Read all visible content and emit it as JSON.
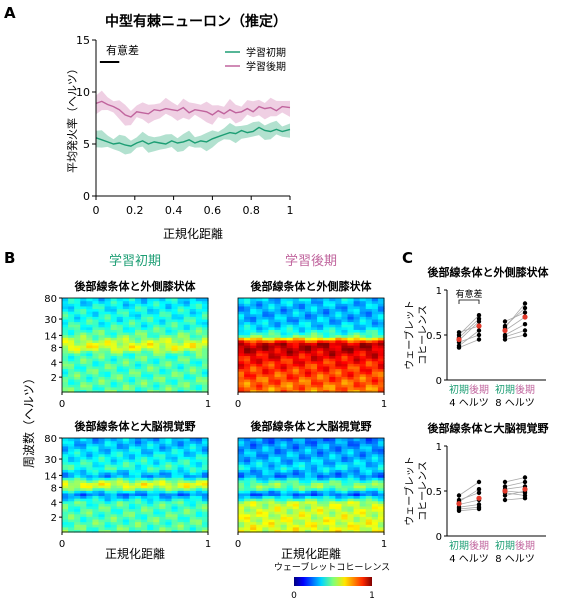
{
  "panels": {
    "a": "A",
    "b": "B",
    "c": "C"
  },
  "colors": {
    "early": "#1d9e74",
    "late": "#c0649d",
    "early_band": "#9fd9c3",
    "late_band": "#ebc3dc",
    "red_dot": "#e23a2b"
  },
  "chart_data": [
    {
      "id": "A",
      "type": "line",
      "title": "中型有棘ニューロン（推定）",
      "xlabel": "正規化距離",
      "ylabel": "平均発火率（ヘルツ）",
      "xlim": [
        0,
        1
      ],
      "ylim": [
        0,
        15
      ],
      "xticks": [
        "0",
        "0.2",
        "0.4",
        "0.6",
        "0.8",
        "1"
      ],
      "yticks": [
        "0",
        "5",
        "10",
        "15"
      ],
      "annotation": "有意差",
      "significance_bar": [
        0.02,
        0.12
      ],
      "legend_position": "top-right",
      "x": [
        0,
        0.03,
        0.06,
        0.09,
        0.12,
        0.15,
        0.18,
        0.21,
        0.24,
        0.27,
        0.3,
        0.33,
        0.36,
        0.39,
        0.42,
        0.45,
        0.48,
        0.51,
        0.54,
        0.57,
        0.6,
        0.63,
        0.66,
        0.69,
        0.72,
        0.75,
        0.78,
        0.81,
        0.84,
        0.87,
        0.9,
        0.93,
        0.96,
        1.0
      ],
      "series": [
        {
          "name": "学習初期",
          "values": [
            5.6,
            5.4,
            5.2,
            5.0,
            5.1,
            4.9,
            4.8,
            5.1,
            5.3,
            5.0,
            5.2,
            5.1,
            5.0,
            5.3,
            5.1,
            5.2,
            5.4,
            5.1,
            5.3,
            5.2,
            5.5,
            5.7,
            5.9,
            6.1,
            6.0,
            6.3,
            6.1,
            6.2,
            6.6,
            6.3,
            6.2,
            6.4,
            6.2,
            6.4
          ],
          "error": 0.8
        },
        {
          "name": "学習後期",
          "values": [
            8.9,
            9.1,
            8.8,
            8.6,
            8.3,
            7.8,
            7.6,
            8.1,
            8.0,
            7.9,
            8.3,
            8.2,
            8.4,
            8.3,
            8.2,
            8.5,
            8.0,
            8.3,
            8.2,
            8.1,
            7.8,
            8.2,
            7.9,
            8.3,
            8.0,
            8.1,
            8.4,
            8.1,
            8.6,
            8.4,
            8.5,
            8.2,
            8.6,
            8.5
          ],
          "error": 0.9
        }
      ]
    },
    {
      "id": "B",
      "type": "heatmap",
      "column_titles": [
        "学習初期",
        "学習後期"
      ],
      "row_titles": [
        "後部線条体と外側膝状体",
        "後部線条体と大脳視覚野"
      ],
      "xlabel": "正規化距離",
      "ylabel": "周波数（ヘルツ）",
      "xlim": [
        0,
        1
      ],
      "xticks": [
        "0",
        "1"
      ],
      "yticks": [
        "2",
        "4",
        "8",
        "14",
        "30",
        "80"
      ],
      "colorbar_label": "ウェーブレットコヒーレンス",
      "colorbar_range": [
        0,
        1
      ],
      "colorbar_ticks": [
        "0",
        "1"
      ],
      "colormap": "jet",
      "bands": [
        "1",
        "2",
        "4",
        "6",
        "8",
        "10",
        "14",
        "20",
        "30",
        "50",
        "80"
      ],
      "maps": [
        {
          "name": "学習初期 後部線条体と外側膝状体",
          "values": [
            0.46,
            0.45,
            0.44,
            0.45,
            0.6,
            0.58,
            0.47,
            0.42,
            0.4,
            0.38,
            0.35
          ]
        },
        {
          "name": "学習後期 後部線条体と外側膝状体",
          "values": [
            0.75,
            0.8,
            0.85,
            0.9,
            0.95,
            0.92,
            0.45,
            0.35,
            0.3,
            0.3,
            0.33
          ]
        },
        {
          "name": "学習初期 後部線条体と大脳視覚野",
          "values": [
            0.46,
            0.45,
            0.44,
            0.25,
            0.56,
            0.6,
            0.28,
            0.42,
            0.38,
            0.33,
            0.3
          ]
        },
        {
          "name": "学習後期 後部線条体と大脳視覚野",
          "values": [
            0.6,
            0.58,
            0.56,
            0.22,
            0.5,
            0.48,
            0.25,
            0.35,
            0.3,
            0.28,
            0.25
          ]
        }
      ]
    },
    {
      "id": "C",
      "type": "scatter",
      "ylabel": "ウェーブレット\nコヒーレンス",
      "group_labels": [
        "初期",
        "後期",
        "初期",
        "後期"
      ],
      "frequency_labels": [
        "4 ヘルツ",
        "8 ヘルツ"
      ],
      "ylim": [
        0,
        1
      ],
      "yticks": [
        "0",
        "0.5",
        "1"
      ],
      "plots": [
        {
          "title": "後部線条体と外側膝状体",
          "annotation": "有意差",
          "groups": [
            {
              "name": "4 ヘルツ",
              "early": [
                0.38,
                0.44,
                0.5,
                0.42,
                0.53,
                0.36,
                0.47
              ],
              "late": [
                0.55,
                0.65,
                0.72,
                0.5,
                0.6,
                0.45,
                0.68
              ],
              "early_mean": 0.45,
              "late_mean": 0.6
            },
            {
              "name": "8 ヘルツ",
              "early": [
                0.45,
                0.5,
                0.6,
                0.55,
                0.65,
                0.48,
                0.58
              ],
              "late": [
                0.5,
                0.62,
                0.8,
                0.7,
                0.75,
                0.55,
                0.85
              ],
              "early_mean": 0.55,
              "late_mean": 0.7
            }
          ]
        },
        {
          "title": "後部線条体と大脳視覚野",
          "annotation": "",
          "groups": [
            {
              "name": "4 ヘルツ",
              "early": [
                0.3,
                0.35,
                0.4,
                0.28,
                0.45,
                0.32,
                0.38
              ],
              "late": [
                0.32,
                0.4,
                0.48,
                0.3,
                0.6,
                0.35,
                0.52
              ],
              "early_mean": 0.36,
              "late_mean": 0.42
            },
            {
              "name": "8 ヘルツ",
              "early": [
                0.4,
                0.5,
                0.55,
                0.45,
                0.6,
                0.48,
                0.52
              ],
              "late": [
                0.42,
                0.48,
                0.6,
                0.5,
                0.65,
                0.45,
                0.55
              ],
              "early_mean": 0.5,
              "late_mean": 0.52
            }
          ]
        }
      ]
    }
  ]
}
